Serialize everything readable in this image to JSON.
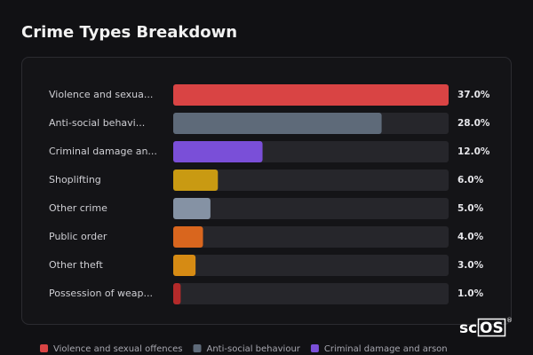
{
  "chart_data": {
    "type": "bar",
    "title": "Crime Types Breakdown",
    "categories": [
      "Violence and sexua...",
      "Anti-social behavi...",
      "Criminal damage an...",
      "Shoplifting",
      "Other crime",
      "Public order",
      "Other theft",
      "Possession of weap..."
    ],
    "values": [
      37,
      28,
      12,
      6,
      5,
      4,
      3,
      1
    ],
    "value_labels": [
      "37.0%",
      "28.0%",
      "12.0%",
      "6.0%",
      "5.0%",
      "4.0%",
      "3.0%",
      "1.0%"
    ],
    "colors": [
      "#d94444",
      "#5e6a79",
      "#7a4fd8",
      "#c99a12",
      "#8592a4",
      "#d9661e",
      "#d68b14",
      "#b42a2a"
    ],
    "xlim": [
      0,
      37
    ],
    "legend": [
      {
        "name": "Violence and sexual offences",
        "color": "#d94444"
      },
      {
        "name": "Anti-social behaviour",
        "color": "#5e6a79"
      },
      {
        "name": "Criminal damage and arson",
        "color": "#7a4fd8"
      }
    ]
  },
  "logo": {
    "prefix": "sc",
    "boxed": "OS",
    "mark": "®"
  }
}
